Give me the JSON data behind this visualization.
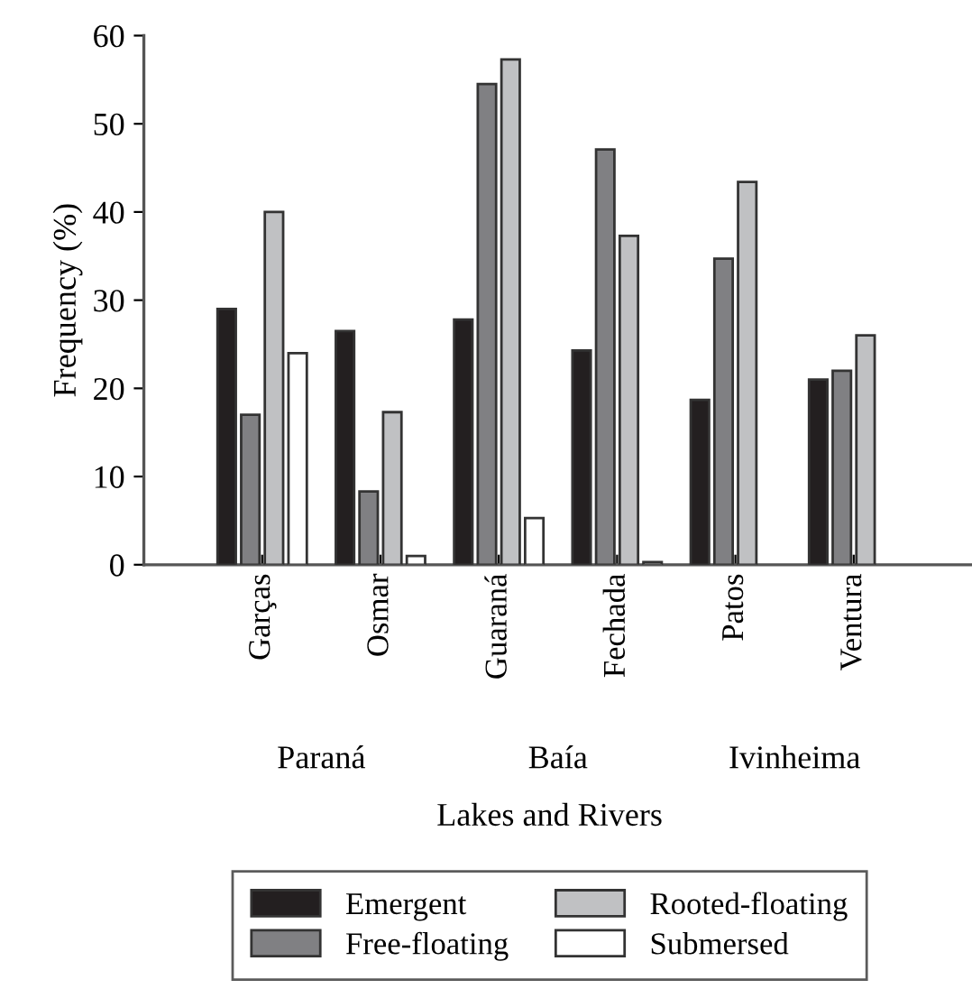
{
  "chart_data": {
    "type": "bar",
    "xlabel": "Lakes and Rivers",
    "ylabel": "Frequency (%)",
    "categories": [
      "Garças",
      "Osmar",
      "Guaraná",
      "Fechada",
      "Patos",
      "Ventura"
    ],
    "series": [
      {
        "name": "Emergent",
        "color": "#231f20",
        "values": [
          29,
          26.5,
          27.8,
          24.3,
          18.7,
          21
        ]
      },
      {
        "name": "Free-floating",
        "color": "#808083",
        "values": [
          17,
          8.3,
          54.5,
          47.1,
          34.7,
          22
        ]
      },
      {
        "name": "Rooted-floating",
        "color": "#c0c1c3",
        "values": [
          40,
          17.3,
          57.3,
          37.3,
          43.4,
          26
        ]
      },
      {
        "name": "Submersed",
        "color": "#ffffff",
        "values": [
          24,
          1,
          5.3,
          0.3,
          null,
          null
        ]
      }
    ],
    "annotations": [
      "Paraná",
      "Baía",
      "Ivinheima"
    ],
    "ylim": [
      0,
      60
    ],
    "yticks": [
      0,
      10,
      20,
      30,
      40,
      50,
      60
    ],
    "grid": false,
    "legend": "bottom"
  }
}
